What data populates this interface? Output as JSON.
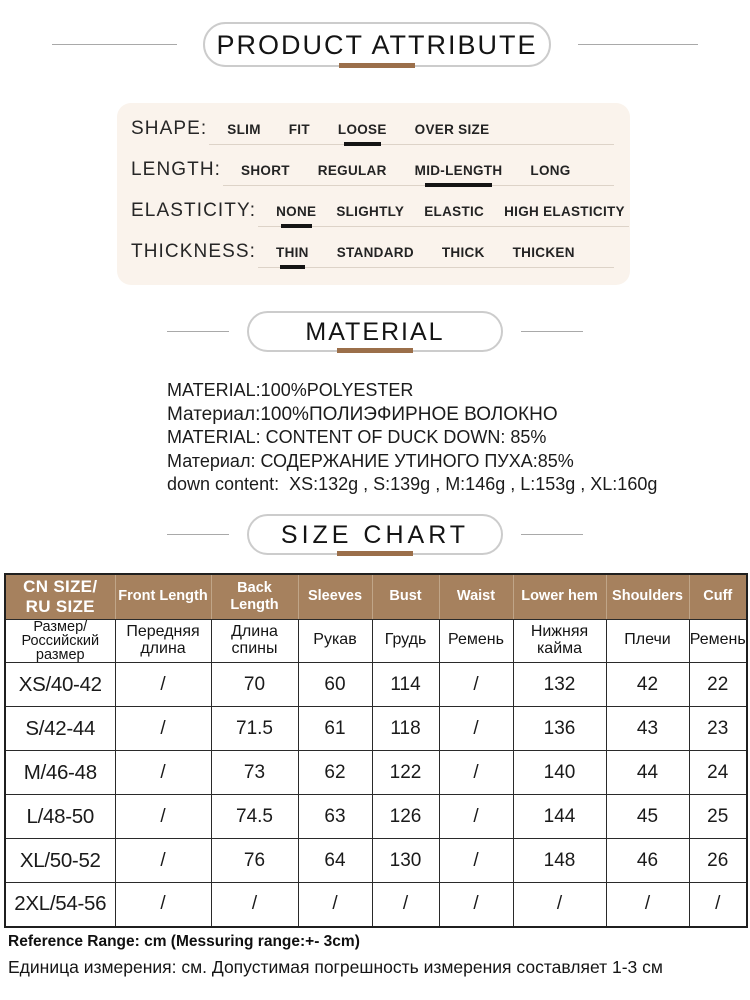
{
  "colors": {
    "accent_bar_brown": "#9b6f4a",
    "table_header_brown": "#a6815e",
    "attribute_panel_bg": "#faf3ec",
    "selected_underline": "#141414"
  },
  "product_attribute": {
    "title": "PRODUCT ATTRIBUTE",
    "rows": [
      {
        "label": "SHAPE:",
        "options": [
          "SLIM",
          "FIT",
          "LOOSE",
          "OVER SIZE"
        ],
        "selected": "LOOSE"
      },
      {
        "label": "LENGTH:",
        "options": [
          "SHORT",
          "REGULAR",
          "MID-LENGTH",
          "LONG"
        ],
        "selected": "MID-LENGTH"
      },
      {
        "label": "ELASTICITY:",
        "options": [
          "NONE",
          "SLIGHTLY",
          "ELASTIC",
          "HIGH ELASTICITY"
        ],
        "selected": "NONE"
      },
      {
        "label": "THICKNESS:",
        "options": [
          "THIN",
          "STANDARD",
          "THICK",
          "THICKEN"
        ],
        "selected": "THIN"
      }
    ]
  },
  "material": {
    "title": "MATERIAL",
    "lines": [
      "MATERIAL:100%POLYESTER",
      "Материал:100%ПОЛИЭФИРНОЕ ВОЛОКНО",
      "MATERIAL: CONTENT OF DUCK DOWN: 85%",
      "Материал: СОДЕРЖАНИЕ УТИНОГО ПУХА:85%",
      "down content:  XS:132g , S:139g , M:146g , L:153g , XL:160g"
    ]
  },
  "size_chart": {
    "title": "SIZE CHART",
    "columns": [
      {
        "en": [
          "CN SIZE/",
          "RU SIZE"
        ],
        "ru": [
          "Размер/",
          "Российский",
          "размер"
        ]
      },
      {
        "en": [
          "Front Length"
        ],
        "ru": [
          "Передняя",
          "длина"
        ]
      },
      {
        "en": [
          "Back Length"
        ],
        "ru": [
          "Длина",
          "спины"
        ]
      },
      {
        "en": [
          "Sleeves"
        ],
        "ru": [
          "Рукав"
        ]
      },
      {
        "en": [
          "Bust"
        ],
        "ru": [
          "Грудь"
        ]
      },
      {
        "en": [
          "Waist"
        ],
        "ru": [
          "Ремень"
        ]
      },
      {
        "en": [
          "Lower hem"
        ],
        "ru": [
          "Нижняя",
          "кайма"
        ]
      },
      {
        "en": [
          "Shoulders"
        ],
        "ru": [
          "Плечи"
        ]
      },
      {
        "en": [
          "Cuff"
        ],
        "ru": [
          "Ремень"
        ]
      }
    ],
    "rows": [
      [
        "XS/40-42",
        "/",
        "70",
        "60",
        "114",
        "/",
        "132",
        "42",
        "22"
      ],
      [
        "S/42-44",
        "/",
        "71.5",
        "61",
        "118",
        "/",
        "136",
        "43",
        "23"
      ],
      [
        "M/46-48",
        "/",
        "73",
        "62",
        "122",
        "/",
        "140",
        "44",
        "24"
      ],
      [
        "L/48-50",
        "/",
        "74.5",
        "63",
        "126",
        "/",
        "144",
        "45",
        "25"
      ],
      [
        "XL/50-52",
        "/",
        "76",
        "64",
        "130",
        "/",
        "148",
        "46",
        "26"
      ],
      [
        "2XL/54-56",
        "/",
        "/",
        "/",
        "/",
        "/",
        "/",
        "/",
        "/"
      ]
    ],
    "footnotes": [
      "Reference Range: cm (Messuring range:+- 3cm)",
      "Единица измерения: см. Допустимая погрешность измерения составляет 1-3 см"
    ]
  }
}
